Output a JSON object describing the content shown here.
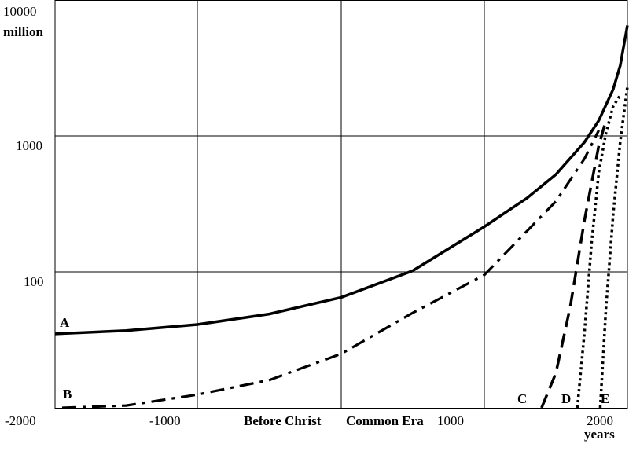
{
  "chart_data": {
    "type": "line",
    "title": "",
    "y_unit_label": "million",
    "x_unit_label": "years",
    "era_labels": {
      "before": "Before Christ",
      "after": "Common Era"
    },
    "y_scale": "log",
    "xlim": [
      -2000,
      2000
    ],
    "ylim": [
      10,
      10000
    ],
    "grid": true,
    "x_ticks": [
      {
        "value": -2000,
        "label": "-2000"
      },
      {
        "value": -1000,
        "label": "-1000"
      },
      {
        "value": 1000,
        "label": "1000"
      },
      {
        "value": 2000,
        "label": "2000"
      }
    ],
    "y_ticks": [
      {
        "value": 100,
        "label": "100"
      },
      {
        "value": 1000,
        "label": "1000"
      },
      {
        "value": 10000,
        "label": "10000"
      }
    ],
    "series": [
      {
        "name": "A",
        "dash": "solid",
        "points": [
          [
            -2000,
            35
          ],
          [
            -1500,
            37
          ],
          [
            -1000,
            41
          ],
          [
            -500,
            49
          ],
          [
            0,
            65
          ],
          [
            500,
            102
          ],
          [
            1000,
            215
          ],
          [
            1300,
            350
          ],
          [
            1500,
            520
          ],
          [
            1700,
            900
          ],
          [
            1800,
            1300
          ],
          [
            1900,
            2200
          ],
          [
            1950,
            3300
          ],
          [
            2000,
            6500
          ]
        ]
      },
      {
        "name": "B",
        "dash": "dashdot",
        "points": [
          [
            -1950,
            10
          ],
          [
            -1500,
            10.4
          ],
          [
            -1000,
            12.5
          ],
          [
            -500,
            16
          ],
          [
            0,
            25
          ],
          [
            500,
            50
          ],
          [
            1000,
            95
          ],
          [
            1500,
            330
          ],
          [
            1700,
            680
          ],
          [
            1800,
            1100
          ]
        ]
      },
      {
        "name": "C",
        "dash": "dash",
        "points": [
          [
            1400,
            10
          ],
          [
            1500,
            18
          ],
          [
            1600,
            55
          ],
          [
            1700,
            240
          ],
          [
            1800,
            850
          ],
          [
            1850,
            1300
          ]
        ]
      },
      {
        "name": "D",
        "dash": "dot",
        "points": [
          [
            1650,
            10
          ],
          [
            1700,
            36
          ],
          [
            1750,
            165
          ],
          [
            1800,
            540
          ],
          [
            1850,
            1050
          ],
          [
            1900,
            1650
          ],
          [
            1950,
            2000
          ]
        ]
      },
      {
        "name": "E",
        "dash": "dot",
        "points": [
          [
            1810,
            10
          ],
          [
            1850,
            54
          ],
          [
            1900,
            260
          ],
          [
            1950,
            910
          ],
          [
            2000,
            2300
          ]
        ]
      }
    ]
  }
}
